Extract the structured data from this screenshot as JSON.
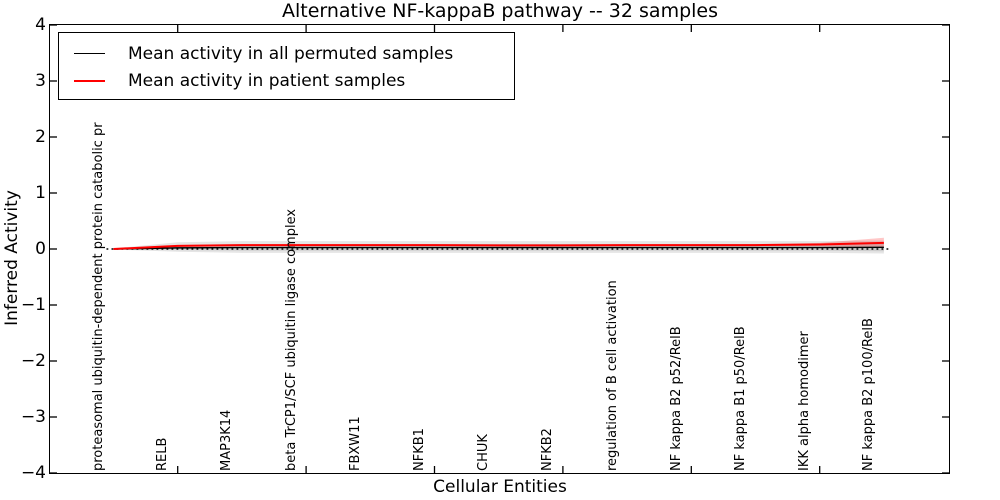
{
  "chart_data": {
    "type": "line",
    "title": "Alternative NF-kappaB pathway -- 32 samples",
    "xlabel": "Cellular Entities",
    "ylabel": "Inferred Activity",
    "ylim": [
      -4,
      4
    ],
    "yticks": {
      "values": [
        4,
        3,
        2,
        1,
        0,
        -1,
        -2,
        -3,
        -4
      ],
      "labels": [
        "4",
        "3",
        "2",
        "1",
        "0",
        "−1",
        "−2",
        "−3",
        "−4"
      ]
    },
    "xtick_indices": [
      1,
      3,
      5,
      7,
      9,
      11
    ],
    "categories": [
      "proteasomal ubiquitin-dependent protein catabolic pr",
      "RELB",
      "MAP3K14",
      "beta TrCP1/SCF ubiquitin ligase complex",
      "FBXW11",
      "NFKB1",
      "CHUK",
      "NFKB2",
      "regulation of B cell activation",
      "NF kappa B2 p52/RelB",
      "NF kappa B1 p50/RelB",
      "IKK alpha homodimer",
      "NF kappa B2 p100/RelB"
    ],
    "series": [
      {
        "name": "Mean activity in all permuted samples",
        "color": "#000000",
        "line_width": 1.4,
        "values": [
          0.0,
          0.02,
          0.025,
          0.025,
          0.025,
          0.025,
          0.025,
          0.025,
          0.025,
          0.025,
          0.025,
          0.025,
          0.03
        ]
      },
      {
        "name": "Mean activity in patient samples",
        "color": "#ff0000",
        "line_width": 2,
        "values": [
          0.0,
          0.055,
          0.07,
          0.07,
          0.07,
          0.07,
          0.065,
          0.065,
          0.07,
          0.07,
          0.07,
          0.08,
          0.11
        ]
      }
    ],
    "bands": [
      {
        "name": "permuted-confidence-outer",
        "color": "#aaaaaa",
        "opacity": 0.3,
        "upper": [
          0.01,
          0.12,
          0.14,
          0.14,
          0.14,
          0.14,
          0.14,
          0.14,
          0.14,
          0.14,
          0.14,
          0.14,
          0.15
        ],
        "lower": [
          -0.01,
          -0.05,
          -0.07,
          -0.07,
          -0.07,
          -0.07,
          -0.07,
          -0.07,
          -0.07,
          -0.07,
          -0.07,
          -0.07,
          -0.08
        ]
      },
      {
        "name": "permuted-confidence-inner",
        "color": "#999999",
        "opacity": 0.3,
        "upper": [
          0.005,
          0.07,
          0.09,
          0.09,
          0.09,
          0.09,
          0.09,
          0.09,
          0.09,
          0.09,
          0.09,
          0.09,
          0.1
        ],
        "lower": [
          -0.005,
          -0.02,
          -0.03,
          -0.03,
          -0.03,
          -0.03,
          -0.03,
          -0.03,
          -0.03,
          -0.03,
          -0.03,
          -0.03,
          -0.04
        ]
      },
      {
        "name": "patient-confidence",
        "color": "#ff0000",
        "opacity": 0.22,
        "upper": [
          0.005,
          0.065,
          0.08,
          0.08,
          0.08,
          0.08,
          0.075,
          0.075,
          0.08,
          0.08,
          0.085,
          0.11,
          0.2
        ],
        "lower": [
          -0.005,
          0.045,
          0.06,
          0.06,
          0.06,
          0.06,
          0.055,
          0.055,
          0.06,
          0.06,
          0.055,
          0.05,
          0.03
        ]
      }
    ],
    "zero_line": {
      "value": 0,
      "style": "dotted",
      "color": "#000000"
    },
    "legend": {
      "position": "upper left"
    }
  }
}
